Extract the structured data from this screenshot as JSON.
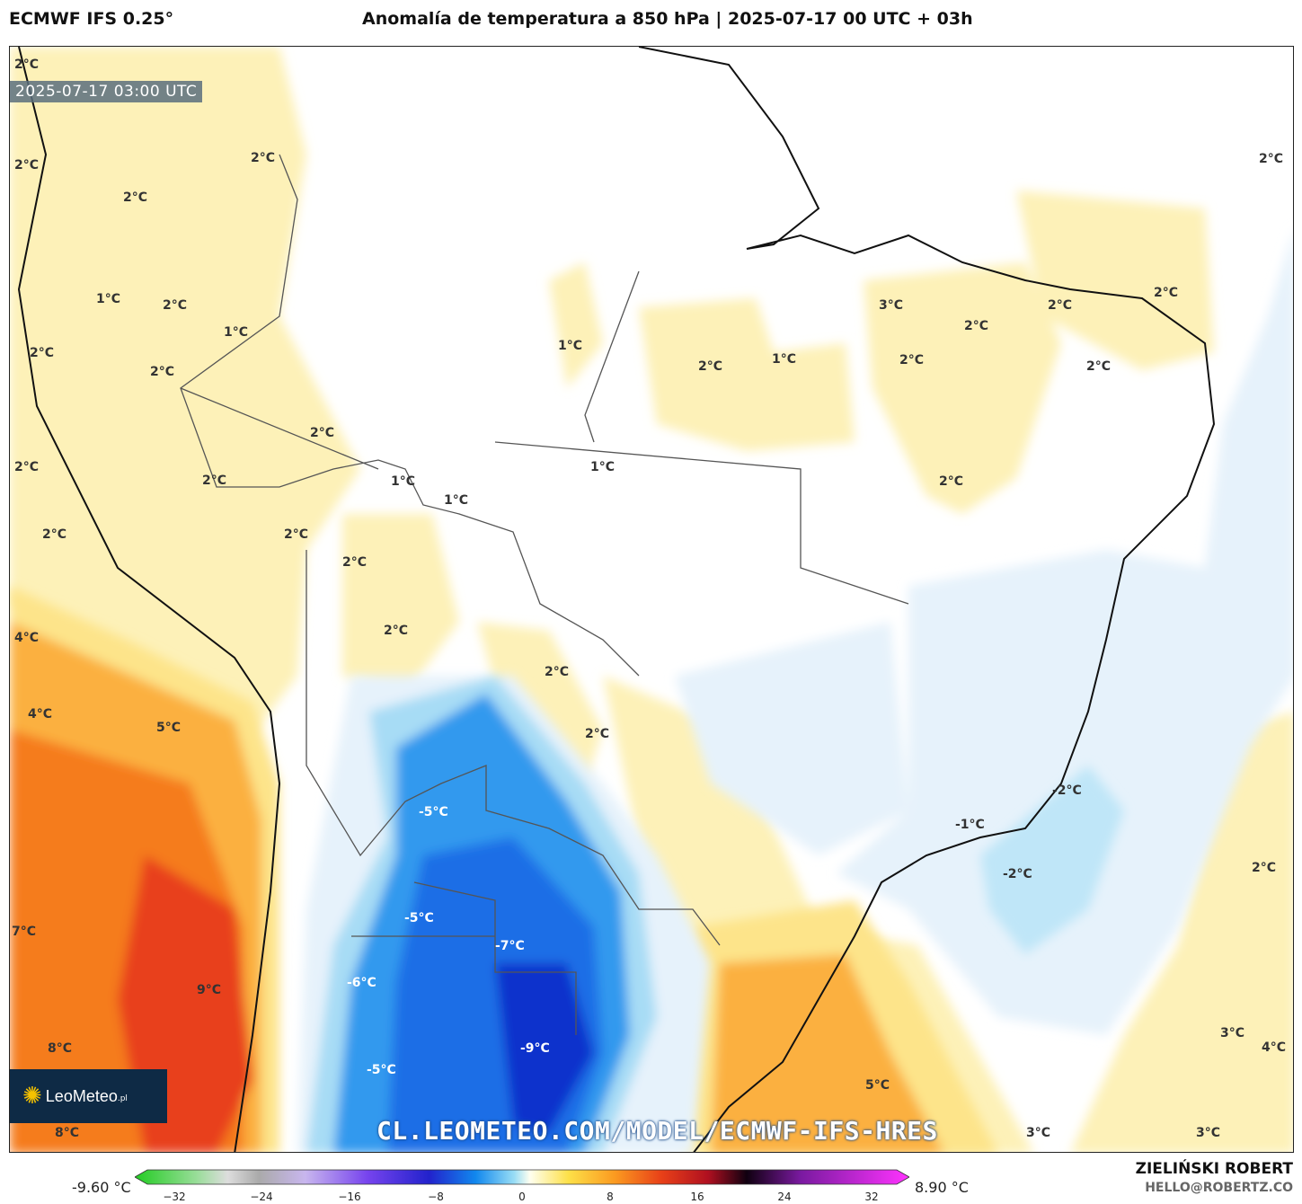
{
  "header": {
    "model": "ECMWF IFS 0.25°",
    "title": "Anomalía de temperatura a 850 hPa | 2025-07-17 00 UTC + 03h"
  },
  "map": {
    "valid_time": "2025-07-17 03:00 UTC",
    "labels": [
      "2°C",
      "2°C",
      "2°C",
      "2°C",
      "1°C",
      "2°C",
      "1°C",
      "2°C",
      "2°C",
      "2°C",
      "2°C",
      "2°C",
      "2°C",
      "2°C",
      "1°C",
      "1°C",
      "2°C",
      "2°C",
      "2°C",
      "2°C",
      "1°C",
      "1°C",
      "2°C",
      "1°C",
      "3°C",
      "2°C",
      "2°C",
      "2°C",
      "2°C",
      "2°C",
      "2°C",
      "2°C",
      "4°C",
      "4°C",
      "5°C",
      "7°C",
      "9°C",
      "8°C",
      "8°C",
      "-5°C",
      "-5°C",
      "-7°C",
      "-6°C",
      "-5°C",
      "-9°C",
      "-2°C",
      "-1°C",
      "-2°C",
      "2°C",
      "5°C",
      "3°C",
      "4°C",
      "3°C",
      "3°C"
    ],
    "watermark": "CL.LEOMETEO.COM/MODEL/ECMWF-IFS-HRES",
    "logo_text": "LeoMeteo",
    "logo_suffix": ".pl",
    "colors": {
      "yellow_light": "#fdf1b8",
      "yellow": "#fde48a",
      "orange": "#fbb040",
      "orange_dark": "#f57b1e",
      "red": "#e8401c",
      "blue_light": "#e6f2fb",
      "blue": "#3399ee",
      "blue_dark": "#1133cc"
    }
  },
  "colorbar": {
    "min_label": "-9.60 °C",
    "max_label": "8.90 °C",
    "ticks": [
      "−32",
      "−24",
      "−16",
      "−8",
      "0",
      "8",
      "16",
      "24",
      "32"
    ]
  },
  "footer": {
    "author": "ZIELIŃSKI ROBERT",
    "email": "HELLO@ROBERTZ.CO"
  }
}
